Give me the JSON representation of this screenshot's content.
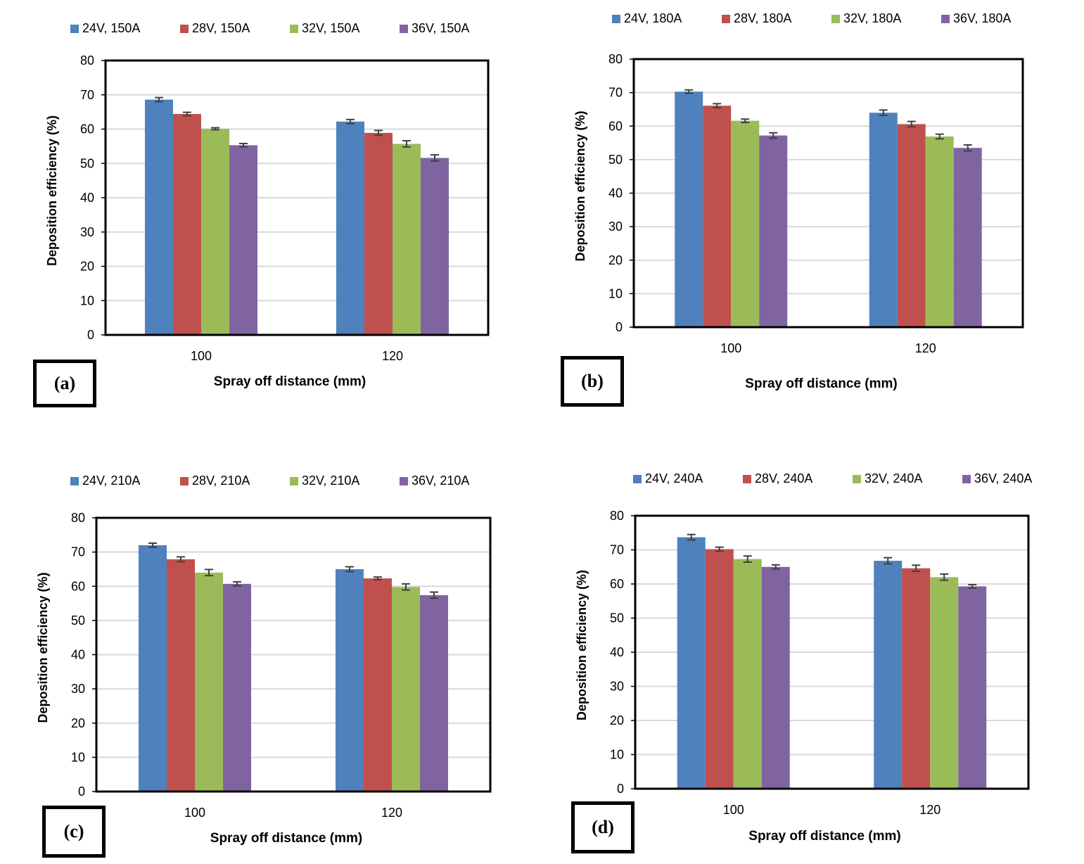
{
  "colors": {
    "s24V": "#4f81bd",
    "s28V": "#c0504d",
    "s32V": "#9bbb59",
    "s36V": "#8064a2"
  },
  "chart_data": [
    {
      "panel_label": "(a)",
      "type": "bar",
      "categories": [
        "100",
        "120"
      ],
      "xlabel": "Spray off distance (mm)",
      "ylabel": "Deposition efficiency (%)",
      "ylim": [
        0,
        80
      ],
      "yticks": [
        "0",
        "10",
        "20",
        "30",
        "40",
        "50",
        "60",
        "70",
        "80"
      ],
      "grid": true,
      "legend_position": "top",
      "series": [
        {
          "name": "24V, 150A",
          "values": [
            68.6,
            62.2
          ],
          "errors": [
            0.6,
            0.6
          ]
        },
        {
          "name": "28V, 150A",
          "values": [
            64.4,
            58.9
          ],
          "errors": [
            0.5,
            0.7
          ]
        },
        {
          "name": "32V, 150A",
          "values": [
            60.1,
            55.7
          ],
          "errors": [
            0.3,
            0.9
          ]
        },
        {
          "name": "36V, 150A",
          "values": [
            55.3,
            51.6
          ],
          "errors": [
            0.5,
            0.9
          ]
        }
      ]
    },
    {
      "panel_label": "(b)",
      "type": "bar",
      "categories": [
        "100",
        "120"
      ],
      "xlabel": "Spray off distance (mm)",
      "ylabel": "Deposition efficiency (%)",
      "ylim": [
        0,
        80
      ],
      "yticks": [
        "0",
        "10",
        "20",
        "30",
        "40",
        "50",
        "60",
        "70",
        "80"
      ],
      "grid": true,
      "legend_position": "top",
      "series": [
        {
          "name": "24V, 180A",
          "values": [
            70.3,
            64.0
          ],
          "errors": [
            0.5,
            0.8
          ]
        },
        {
          "name": "28V, 180A",
          "values": [
            66.1,
            60.6
          ],
          "errors": [
            0.6,
            0.8
          ]
        },
        {
          "name": "32V, 180A",
          "values": [
            61.6,
            56.9
          ],
          "errors": [
            0.5,
            0.7
          ]
        },
        {
          "name": "36V, 180A",
          "values": [
            57.2,
            53.5
          ],
          "errors": [
            0.8,
            0.9
          ]
        }
      ]
    },
    {
      "panel_label": "(c)",
      "type": "bar",
      "categories": [
        "100",
        "120"
      ],
      "xlabel": "Spray off distance (mm)",
      "ylabel": "Deposition efficiency (%)",
      "ylim": [
        0,
        80
      ],
      "yticks": [
        "0",
        "10",
        "20",
        "30",
        "40",
        "50",
        "60",
        "70",
        "80"
      ],
      "grid": true,
      "legend_position": "top",
      "series": [
        {
          "name": "24V, 210A",
          "values": [
            72.0,
            65.0
          ],
          "errors": [
            0.6,
            0.7
          ]
        },
        {
          "name": "28V, 210A",
          "values": [
            67.9,
            62.3
          ],
          "errors": [
            0.7,
            0.4
          ]
        },
        {
          "name": "32V, 210A",
          "values": [
            64.0,
            59.8
          ],
          "errors": [
            0.9,
            0.9
          ]
        },
        {
          "name": "36V, 210A",
          "values": [
            60.7,
            57.4
          ],
          "errors": [
            0.6,
            0.9
          ]
        }
      ]
    },
    {
      "panel_label": "(d)",
      "type": "bar",
      "categories": [
        "100",
        "120"
      ],
      "xlabel": "Spray off distance (mm)",
      "ylabel": "Deposition efficiency (%)",
      "ylim": [
        0,
        80
      ],
      "yticks": [
        "0",
        "10",
        "20",
        "30",
        "40",
        "50",
        "60",
        "70",
        "80"
      ],
      "grid": true,
      "legend_position": "top",
      "series": [
        {
          "name": "24V, 240A",
          "values": [
            73.7,
            66.8
          ],
          "errors": [
            0.8,
            0.9
          ]
        },
        {
          "name": "28V, 240A",
          "values": [
            70.2,
            64.6
          ],
          "errors": [
            0.6,
            0.9
          ]
        },
        {
          "name": "32V, 240A",
          "values": [
            67.3,
            62.0
          ],
          "errors": [
            0.9,
            0.9
          ]
        },
        {
          "name": "36V, 240A",
          "values": [
            65.0,
            59.3
          ],
          "errors": [
            0.6,
            0.5
          ]
        }
      ]
    }
  ]
}
